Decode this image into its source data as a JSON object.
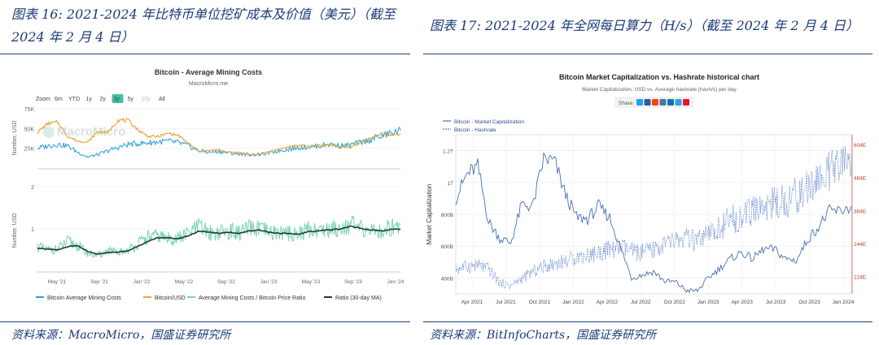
{
  "left_panel": {
    "figure_title": "图表 16:  2021-2024 年比特币单位挖矿成本及价值（美元）（截至 2024 年 2 月 4 日）",
    "source": "资料来源：MacroMicro，国盛证券研究所",
    "chart_title": "Bitcoin - Average Mining Costs",
    "chart_subtitle": "MacroMicro.me",
    "watermark": "MacroMicro",
    "zoom_label": "Zoom",
    "zoom_options": [
      "6m",
      "YTD",
      "1y",
      "2y",
      "3y",
      "5y",
      "10y",
      "All"
    ],
    "zoom_selected": "3y",
    "legend": [
      "Bitcoin Average Mining Costs",
      "Bitcoin/USD",
      "Average Mining Costs / Bitcoin Price Ratio",
      "Ratio (30-day MA)"
    ],
    "colors": {
      "mining_cost": "#2a9fd6",
      "btc_usd": "#e8a93b",
      "ratio": "#7dd3b8",
      "ratio_ma": "#1f3b2b",
      "selected_zoom": "#3fc1a9"
    }
  },
  "right_panel": {
    "figure_title": "图表 17:  2021-2024 年全网每日算力（H/s）（截至 2024 年 2 月 4 日）",
    "source": "资料来源：BitInfoCharts，国盛证券研究所",
    "chart_title": "Bitcoin Market Capitalization vs. Hashrate historical chart",
    "chart_subtitle": "Market Capitalization, USD vs. Average hashrate (hash/s) per day",
    "share_label": "Share:",
    "share_icons": [
      "twitter-icon",
      "facebook-icon",
      "reddit-icon",
      "vk-icon",
      "linkedin-icon",
      "telegram-icon",
      "weibo-icon"
    ],
    "legend": [
      "Bitcoin - Market Capitalization",
      "Bitcoin - Hashrate"
    ],
    "colors": {
      "market_cap": "#4a6fb5",
      "hashrate": "#5a7ec8",
      "right_axis": "#c0392b"
    }
  },
  "chart_data": [
    {
      "type": "line",
      "title": "Bitcoin - Average Mining Costs",
      "panel": "top",
      "ylabel": "Number, USD",
      "x_tick_labels": [
        "May '21",
        "Sep '21",
        "Jan '22",
        "May '22",
        "Sep '22",
        "Jan '23",
        "May '23",
        "Sep '23",
        "Jan '24"
      ],
      "y_tick_labels": [
        "25K",
        "50K",
        "75K"
      ],
      "ylim": [
        0,
        75000
      ],
      "x": [
        "2021-02",
        "2021-03",
        "2021-04",
        "2021-05",
        "2021-06",
        "2021-07",
        "2021-08",
        "2021-09",
        "2021-10",
        "2021-11",
        "2021-12",
        "2022-01",
        "2022-02",
        "2022-03",
        "2022-04",
        "2022-05",
        "2022-06",
        "2022-07",
        "2022-08",
        "2022-09",
        "2022-10",
        "2022-11",
        "2022-12",
        "2023-01",
        "2023-02",
        "2023-03",
        "2023-04",
        "2023-05",
        "2023-06",
        "2023-07",
        "2023-08",
        "2023-09",
        "2023-10",
        "2023-11",
        "2023-12",
        "2024-01",
        "2024-02"
      ],
      "series": [
        {
          "name": "Bitcoin Average Mining Costs",
          "values": [
            25000,
            28000,
            30000,
            28000,
            20000,
            14000,
            17000,
            22000,
            26000,
            30000,
            31000,
            32000,
            33000,
            34000,
            32000,
            28000,
            22000,
            20000,
            21000,
            19000,
            18000,
            17000,
            17000,
            19000,
            22000,
            24000,
            26000,
            27000,
            28000,
            30000,
            28000,
            29000,
            32000,
            36000,
            40000,
            44000,
            47000
          ]
        },
        {
          "name": "Bitcoin/USD",
          "values": [
            45000,
            56000,
            58000,
            40000,
            34000,
            33000,
            46000,
            45000,
            61000,
            60000,
            48000,
            40000,
            40000,
            44000,
            41000,
            31000,
            21000,
            22000,
            23000,
            20000,
            20000,
            17000,
            17000,
            21000,
            24000,
            27000,
            29000,
            27000,
            29000,
            30000,
            27000,
            26000,
            32000,
            37000,
            43000,
            42000,
            43000
          ]
        }
      ]
    },
    {
      "type": "line",
      "title": "",
      "panel": "bottom",
      "ylabel": "Number, USD",
      "x_tick_labels": [
        "May '21",
        "Sep '21",
        "Jan '22",
        "May '22",
        "Sep '22",
        "Jan '23",
        "May '23",
        "Sep '23",
        "Jan '24"
      ],
      "y_tick_labels": [
        "1",
        "2"
      ],
      "ylim": [
        0,
        2
      ],
      "x": [
        "2021-02",
        "2021-03",
        "2021-04",
        "2021-05",
        "2021-06",
        "2021-07",
        "2021-08",
        "2021-09",
        "2021-10",
        "2021-11",
        "2021-12",
        "2022-01",
        "2022-02",
        "2022-03",
        "2022-04",
        "2022-05",
        "2022-06",
        "2022-07",
        "2022-08",
        "2022-09",
        "2022-10",
        "2022-11",
        "2022-12",
        "2023-01",
        "2023-02",
        "2023-03",
        "2023-04",
        "2023-05",
        "2023-06",
        "2023-07",
        "2023-08",
        "2023-09",
        "2023-10",
        "2023-11",
        "2023-12",
        "2024-01",
        "2024-02"
      ],
      "series": [
        {
          "name": "Average Mining Costs / Bitcoin Price Ratio",
          "values": [
            0.58,
            0.5,
            0.52,
            0.7,
            0.6,
            0.42,
            0.37,
            0.49,
            0.43,
            0.5,
            0.65,
            0.8,
            0.83,
            0.77,
            0.78,
            0.9,
            1.05,
            0.91,
            0.91,
            0.95,
            0.9,
            1.0,
            1.0,
            0.9,
            0.92,
            0.89,
            0.9,
            1.0,
            0.97,
            1.0,
            1.04,
            1.12,
            1.0,
            0.97,
            0.93,
            1.05,
            1.09
          ]
        },
        {
          "name": "Ratio (30-day MA)",
          "values": [
            0.55,
            0.52,
            0.5,
            0.58,
            0.6,
            0.46,
            0.4,
            0.44,
            0.45,
            0.48,
            0.6,
            0.7,
            0.8,
            0.78,
            0.77,
            0.84,
            0.95,
            0.92,
            0.9,
            0.92,
            0.9,
            0.95,
            0.98,
            0.92,
            0.9,
            0.88,
            0.88,
            0.94,
            0.96,
            0.98,
            1.0,
            1.06,
            1.02,
            0.98,
            0.95,
            0.98,
            1.0
          ]
        }
      ]
    },
    {
      "type": "line",
      "title": "Bitcoin Market Capitalization vs. Hashrate historical chart",
      "ylabel": "Market Capitalization",
      "x_tick_labels": [
        "Apr 2021",
        "Jul 2021",
        "Oct 2021",
        "Jan 2022",
        "Apr 2022",
        "Jul 2022",
        "Oct 2022",
        "Jan 2023",
        "Apr 2023",
        "Jul 2023",
        "Oct 2023",
        "Jan 2024"
      ],
      "y_tick_labels": [
        "400B",
        "600B",
        "800B",
        "1T",
        "1.2T"
      ],
      "y2_tick_labels": [
        "124E",
        "244E",
        "364E",
        "484E",
        "604E"
      ],
      "ylim": [
        300000000000,
        1300000000000
      ],
      "y2lim": [
        60,
        640
      ],
      "x": [
        "2021-02",
        "2021-03",
        "2021-04",
        "2021-05",
        "2021-06",
        "2021-07",
        "2021-08",
        "2021-09",
        "2021-10",
        "2021-11",
        "2021-12",
        "2022-01",
        "2022-02",
        "2022-03",
        "2022-04",
        "2022-05",
        "2022-06",
        "2022-07",
        "2022-08",
        "2022-09",
        "2022-10",
        "2022-11",
        "2022-12",
        "2023-01",
        "2023-02",
        "2023-03",
        "2023-04",
        "2023-05",
        "2023-06",
        "2023-07",
        "2023-08",
        "2023-09",
        "2023-10",
        "2023-11",
        "2023-12",
        "2024-01",
        "2024-02"
      ],
      "series": [
        {
          "name": "Bitcoin - Market Capitalization",
          "values": [
            900000000000,
            1050000000000,
            1100000000000,
            750000000000,
            650000000000,
            620000000000,
            860000000000,
            850000000000,
            1150000000000,
            1130000000000,
            920000000000,
            780000000000,
            770000000000,
            850000000000,
            780000000000,
            590000000000,
            400000000000,
            420000000000,
            440000000000,
            380000000000,
            375000000000,
            320000000000,
            320000000000,
            400000000000,
            460000000000,
            520000000000,
            560000000000,
            520000000000,
            580000000000,
            580000000000,
            520000000000,
            510000000000,
            640000000000,
            720000000000,
            820000000000,
            820000000000,
            850000000000
          ]
        },
        {
          "name": "Bitcoin - Hashrate",
          "values": [
            150,
            160,
            165,
            150,
            100,
            90,
            115,
            140,
            160,
            170,
            180,
            195,
            200,
            210,
            220,
            230,
            215,
            210,
            220,
            240,
            255,
            260,
            250,
            270,
            300,
            330,
            340,
            360,
            380,
            390,
            400,
            420,
            440,
            480,
            500,
            520,
            560
          ]
        }
      ]
    }
  ]
}
